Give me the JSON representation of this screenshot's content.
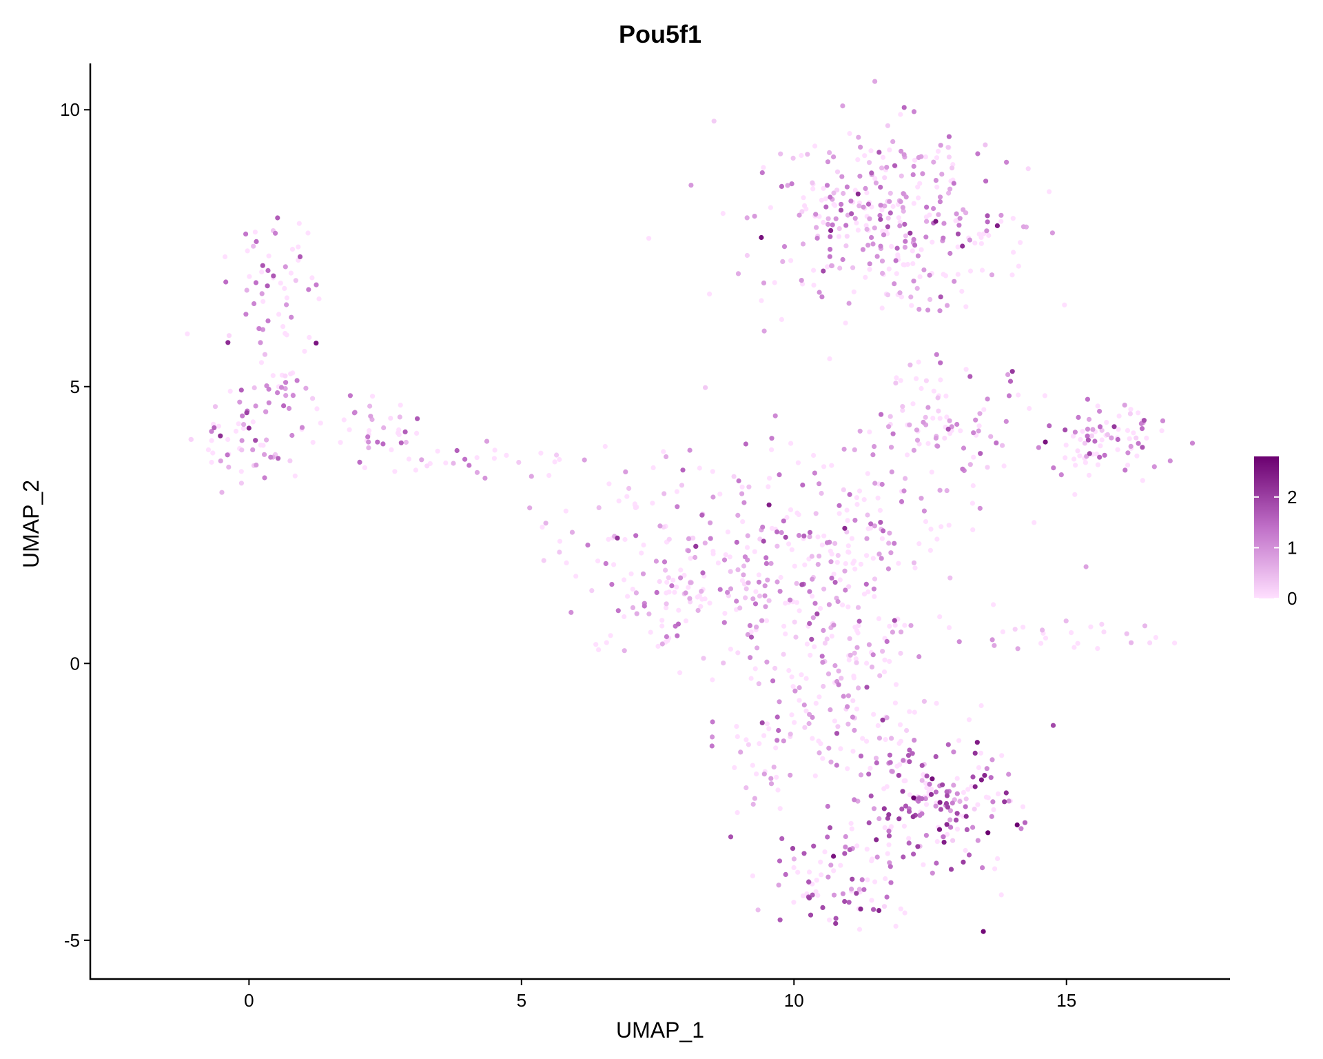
{
  "chart_data": {
    "type": "scatter",
    "title": "Pou5f1",
    "xlabel": "UMAP_1",
    "ylabel": "UMAP_2",
    "xlim": [
      -2.9,
      18.0
    ],
    "ylim": [
      -5.7,
      10.8
    ],
    "x_ticks": [
      0,
      5,
      10,
      15
    ],
    "y_ticks": [
      -5,
      0,
      5,
      10
    ],
    "x_tick_labels": [
      "0",
      "5",
      "10",
      "15"
    ],
    "y_tick_labels": [
      "-5",
      "0",
      "5",
      "10"
    ],
    "grid": false,
    "legend": {
      "position": "right",
      "type": "colorbar",
      "min": 0,
      "max": 2.8,
      "ticks": [
        0,
        1,
        2
      ],
      "tick_labels": [
        "0",
        "1",
        "2"
      ],
      "color_low": "#ffe0ff",
      "color_high": "#6b0070"
    },
    "clusters_note_free": true,
    "clusters": [
      {
        "cx": 0.5,
        "cy": 6.6,
        "sx": 0.45,
        "sy": 0.75,
        "n": 60,
        "mean_expr": 0.9
      },
      {
        "cx": -0.3,
        "cy": 4.0,
        "sx": 0.45,
        "sy": 0.35,
        "n": 45,
        "mean_expr": 0.8
      },
      {
        "cx": 0.7,
        "cy": 4.8,
        "sx": 0.45,
        "sy": 0.45,
        "n": 35,
        "mean_expr": 0.9
      },
      {
        "cx": 2.4,
        "cy": 4.2,
        "sx": 0.4,
        "sy": 0.25,
        "n": 35,
        "mean_expr": 1.0
      },
      {
        "cx": 4.6,
        "cy": 3.6,
        "sx": 0.8,
        "sy": 0.15,
        "n": 25,
        "mean_expr": 0.5
      },
      {
        "cx": 6.6,
        "cy": 2.4,
        "sx": 0.55,
        "sy": 0.7,
        "n": 30,
        "mean_expr": 0.3
      },
      {
        "cx": 11.7,
        "cy": 8.0,
        "sx": 1.2,
        "sy": 0.85,
        "n": 330,
        "mean_expr": 0.8
      },
      {
        "cx": 12.7,
        "cy": 4.3,
        "sx": 0.7,
        "sy": 0.55,
        "n": 90,
        "mean_expr": 0.7
      },
      {
        "cx": 10.0,
        "cy": 2.0,
        "sx": 1.5,
        "sy": 1.1,
        "n": 320,
        "mean_expr": 0.7
      },
      {
        "cx": 8.0,
        "cy": 1.2,
        "sx": 0.8,
        "sy": 0.6,
        "n": 70,
        "mean_expr": 0.6
      },
      {
        "cx": 10.7,
        "cy": -0.5,
        "sx": 0.9,
        "sy": 0.8,
        "n": 120,
        "mean_expr": 0.6
      },
      {
        "cx": 9.4,
        "cy": -1.9,
        "sx": 0.3,
        "sy": 0.45,
        "n": 20,
        "mean_expr": 0.1
      },
      {
        "cx": 12.6,
        "cy": -2.5,
        "sx": 0.75,
        "sy": 0.55,
        "n": 180,
        "mean_expr": 1.5
      },
      {
        "cx": 11.0,
        "cy": -3.9,
        "sx": 0.75,
        "sy": 0.45,
        "n": 90,
        "mean_expr": 1.6
      },
      {
        "cx": 15.8,
        "cy": 4.0,
        "sx": 0.55,
        "sy": 0.4,
        "n": 85,
        "mean_expr": 1.1
      },
      {
        "cx": 15.0,
        "cy": 0.5,
        "sx": 0.9,
        "sy": 0.15,
        "n": 25,
        "mean_expr": 0.3
      }
    ]
  }
}
